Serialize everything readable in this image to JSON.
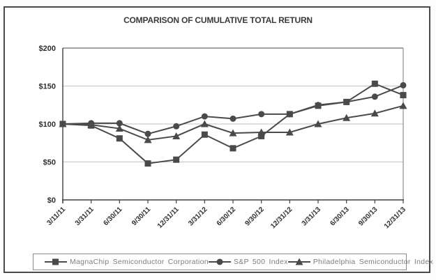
{
  "title": "COMPARISON OF CUMULATIVE TOTAL RETURN",
  "colors": {
    "line": "#4a4a4a",
    "grid": "#c2c2c2",
    "axis": "#3f3f3f",
    "plot_top_border": "#6a6a6a",
    "plot_right_border": "#8f8f8f",
    "tick_text": "#2f2f2f",
    "legend_text": "#7d7d7d"
  },
  "chart_data": {
    "type": "line",
    "title": "COMPARISON OF CUMULATIVE TOTAL RETURN",
    "categories": [
      "3/11/11",
      "3/31/11",
      "6/30/11",
      "9/30/11",
      "12/31/11",
      "3/31/12",
      "6/30/12",
      "9/30/12",
      "12/31/12",
      "3/31/13",
      "6/30/13",
      "9/30/13",
      "12/31/13"
    ],
    "series": [
      {
        "name": "MagnaChip Semiconductor Corporation",
        "marker": "square",
        "values": [
          100,
          98,
          81,
          48,
          53,
          86,
          68,
          84,
          113,
          124,
          129,
          153,
          138
        ]
      },
      {
        "name": "S&P 500 Index",
        "marker": "circle",
        "values": [
          100,
          101,
          101,
          87,
          97,
          110,
          107,
          113,
          113,
          125,
          129,
          136,
          151
        ]
      },
      {
        "name": "Philadelphia Semiconductor Index",
        "marker": "triangle",
        "values": [
          100,
          99,
          94,
          79,
          84,
          100,
          88,
          89,
          89,
          100,
          108,
          114,
          124
        ]
      }
    ],
    "y_ticks": [
      "$200",
      "$150",
      "$100",
      "$50",
      "$0"
    ],
    "y_tick_values": [
      200,
      150,
      100,
      50,
      0
    ],
    "ylim": [
      0,
      200
    ],
    "xlabel": "",
    "ylabel": "",
    "grid": "horizontal",
    "legend_position": "bottom"
  },
  "legend": {
    "items": [
      {
        "label": "MagnaChip Semiconductor Corporation",
        "marker": "square"
      },
      {
        "label": "S&P 500 Index",
        "marker": "circle"
      },
      {
        "label": "Philadelphia Semiconductor Index",
        "marker": "triangle"
      }
    ]
  }
}
